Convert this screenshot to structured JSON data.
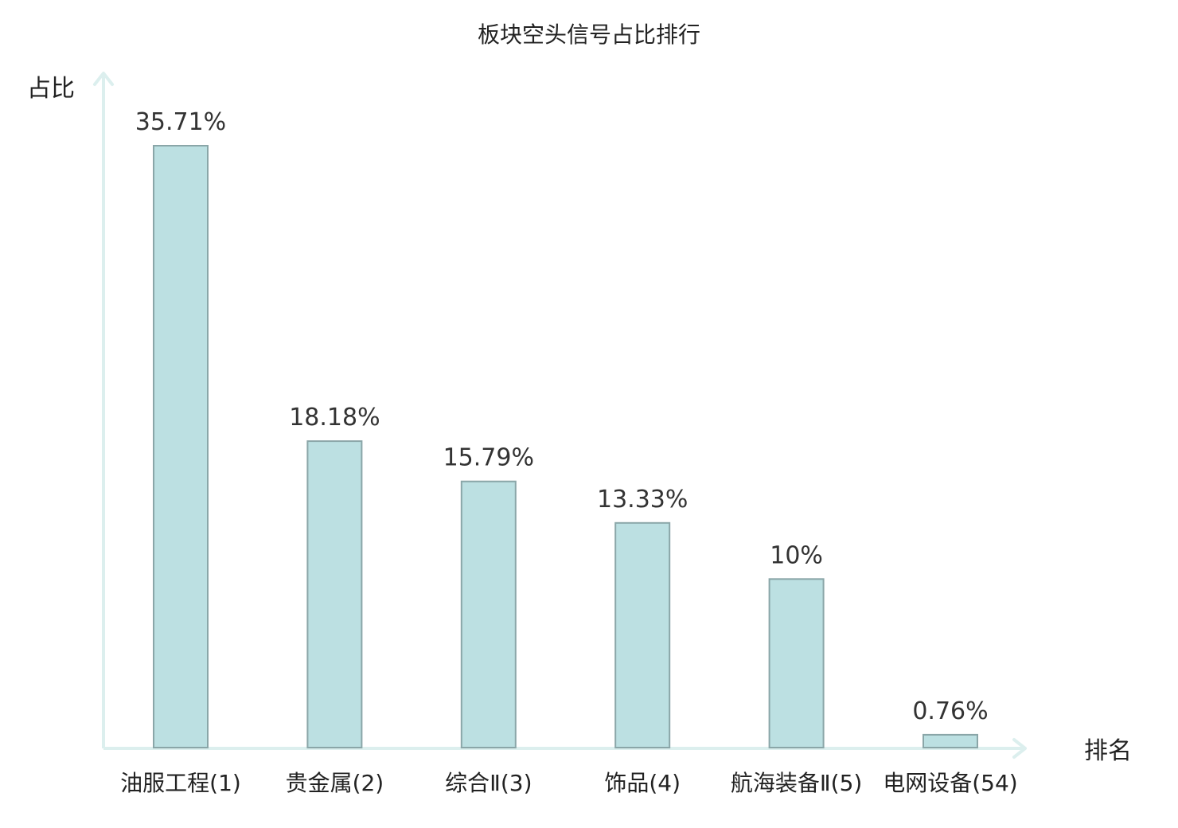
{
  "chart_data": {
    "type": "bar",
    "title": "板块空头信号占比排行",
    "ylabel": "占比",
    "xlabel": "排名",
    "categories": [
      {
        "name": "油服工程",
        "rank": "(1)",
        "highlight": false
      },
      {
        "name": "贵金属",
        "rank": "(2)",
        "highlight": false
      },
      {
        "name": "综合Ⅱ",
        "rank": "(3)",
        "highlight": false
      },
      {
        "name": "饰品",
        "rank": "(4)",
        "highlight": false
      },
      {
        "name": "航海装备Ⅱ",
        "rank": "(5)",
        "highlight": false
      },
      {
        "name": "电网设备",
        "rank": "(54)",
        "highlight": true
      }
    ],
    "values": [
      35.71,
      18.18,
      15.79,
      13.33,
      10,
      0.76
    ],
    "value_labels": [
      "35.71%",
      "18.18%",
      "15.79%",
      "13.33%",
      "10%",
      "0.76%"
    ],
    "ylim": [
      0,
      35.71
    ],
    "grid": false,
    "colors": {
      "bar_fill": "#bce0e2",
      "bar_stroke": "#8aa6a8",
      "axis": "#dcefee",
      "highlight_label": "#e01010",
      "text": "#222222"
    }
  }
}
